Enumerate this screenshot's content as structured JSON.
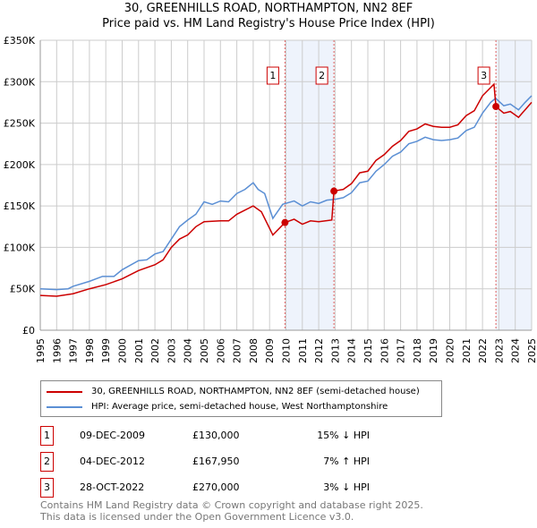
{
  "chart_data": {
    "type": "line",
    "title": "30, GREENHILLS ROAD, NORTHAMPTON, NN2 8EF",
    "subtitle": "Price paid vs. HM Land Registry's House Price Index (HPI)",
    "xlim": [
      1995,
      2025
    ],
    "ylim": [
      0,
      350000
    ],
    "yticks": [
      0,
      50000,
      100000,
      150000,
      200000,
      250000,
      300000,
      350000
    ],
    "ytick_labels": [
      "£0",
      "£50K",
      "£100K",
      "£150K",
      "£200K",
      "£250K",
      "£300K",
      "£350K"
    ],
    "xticks": [
      "1995",
      "1996",
      "1997",
      "1998",
      "1999",
      "2000",
      "2001",
      "2002",
      "2003",
      "2004",
      "2005",
      "2006",
      "2007",
      "2008",
      "2009",
      "2010",
      "2011",
      "2012",
      "2013",
      "2014",
      "2015",
      "2016",
      "2017",
      "2018",
      "2019",
      "2020",
      "2021",
      "2022",
      "2023",
      "2024",
      "2025"
    ],
    "grid": true,
    "series": [
      {
        "name": "30, GREENHILLS ROAD, NORTHAMPTON, NN2 8EF (semi-detached house)",
        "color": "#cc0000",
        "x": [
          1995,
          1996,
          1997,
          1998,
          1999,
          2000,
          2001,
          2002,
          2002.5,
          2003,
          2003.5,
          2004,
          2004.5,
          2005,
          2006,
          2006.5,
          2007,
          2008,
          2008.5,
          2009.2,
          2009.94,
          2010.5,
          2011,
          2011.5,
          2012,
          2012.8,
          2012.93,
          2013.5,
          2014,
          2014.5,
          2015,
          2015.5,
          2016,
          2016.5,
          2017,
          2017.5,
          2018,
          2018.5,
          2019,
          2019.5,
          2020,
          2020.5,
          2021,
          2021.5,
          2022,
          2022.7,
          2022.82,
          2023.3,
          2023.7,
          2024.2,
          2024.6,
          2025
        ],
        "y": [
          42000,
          41000,
          44000,
          50000,
          55000,
          62000,
          72000,
          79000,
          85000,
          100000,
          110000,
          115000,
          125000,
          131000,
          132000,
          132000,
          140000,
          150000,
          143000,
          115000,
          130000,
          134000,
          128000,
          132000,
          131000,
          133000,
          167950,
          170000,
          177000,
          190000,
          192000,
          205000,
          212000,
          222000,
          229000,
          240000,
          243000,
          249000,
          246000,
          245000,
          245000,
          248000,
          259000,
          265000,
          283000,
          297000,
          270000,
          262000,
          264000,
          257000,
          266000,
          275000
        ]
      },
      {
        "name": "HPI: Average price, semi-detached house, West Northamptonshire",
        "color": "#5b8fd4",
        "x": [
          1995,
          1996,
          1996.7,
          1997,
          1998,
          1998.8,
          1999.5,
          2000,
          2001,
          2001.5,
          2002,
          2002.5,
          2003,
          2003.5,
          2004,
          2004.5,
          2005,
          2005.5,
          2006,
          2006.5,
          2007,
          2007.5,
          2008,
          2008.3,
          2008.7,
          2009.2,
          2009.8,
          2010.5,
          2011,
          2011.5,
          2012,
          2012.5,
          2013,
          2013.5,
          2014,
          2014.5,
          2015,
          2015.5,
          2016,
          2016.5,
          2017,
          2017.5,
          2018,
          2018.5,
          2019,
          2019.5,
          2020,
          2020.5,
          2021,
          2021.5,
          2022,
          2022.5,
          2022.8,
          2023.3,
          2023.7,
          2024.2,
          2024.6,
          2025
        ],
        "y": [
          50000,
          49000,
          50000,
          53000,
          59000,
          65000,
          65000,
          73000,
          84000,
          85000,
          92000,
          95000,
          110000,
          125000,
          133000,
          140000,
          155000,
          152000,
          156000,
          155000,
          165000,
          170000,
          178000,
          170000,
          165000,
          135000,
          152000,
          156000,
          150000,
          155000,
          153000,
          157000,
          158000,
          160000,
          166000,
          178000,
          180000,
          192000,
          200000,
          210000,
          215000,
          225000,
          228000,
          233000,
          230000,
          229000,
          230000,
          232000,
          241000,
          245000,
          262000,
          275000,
          280000,
          271000,
          273000,
          266000,
          275000,
          283000
        ]
      }
    ],
    "sales": [
      {
        "label": "1",
        "x": 2009.94,
        "y": 130000,
        "date": "09-DEC-2009",
        "price": "£130,000",
        "hpi": "15% ↓ HPI"
      },
      {
        "label": "2",
        "x": 2012.93,
        "y": 167950,
        "date": "04-DEC-2012",
        "price": "£167,950",
        "hpi": "7% ↑ HPI"
      },
      {
        "label": "3",
        "x": 2022.82,
        "y": 270000,
        "date": "28-OCT-2022",
        "price": "£270,000",
        "hpi": "3% ↓ HPI"
      }
    ],
    "shaded_ranges": [
      [
        2009.94,
        2012.93
      ],
      [
        2022.82,
        2025
      ]
    ]
  },
  "footer": {
    "line1": "Contains HM Land Registry data © Crown copyright and database right 2025.",
    "line2": "This data is licensed under the Open Government Licence v3.0."
  }
}
